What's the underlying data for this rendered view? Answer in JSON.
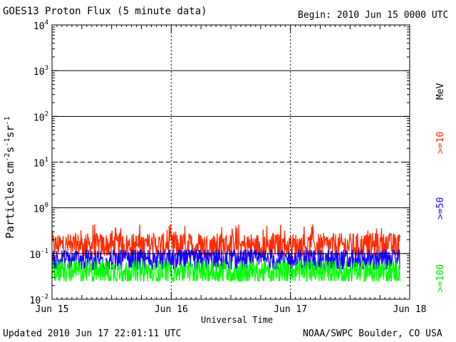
{
  "header": {
    "title": "GOES13 Proton Flux (5 minute data)",
    "begin": "Begin: 2010 Jun 15 0000 UTC"
  },
  "footer": {
    "updated": "Updated 2010 Jun 17 22:01:11 UTC",
    "credit": "NOAA/SWPC Boulder, CO USA"
  },
  "legend": {
    "unit": "MeV",
    "ge10": ">=10",
    "ge50": ">=50",
    "ge100": ">=100"
  },
  "chart_data": {
    "type": "line",
    "title": "GOES13 Proton Flux (5 minute data)",
    "xlabel": "Universal Time",
    "ylabel": "Particles cm-2s-1sr-1",
    "yscale": "log",
    "ylim": [
      0.01,
      10000
    ],
    "ytick_labels": [
      {
        "base": "10",
        "exp": "-2"
      },
      {
        "base": "10",
        "exp": "-1"
      },
      {
        "base": "10",
        "exp": "0"
      },
      {
        "base": "10",
        "exp": "1"
      },
      {
        "base": "10",
        "exp": "2"
      },
      {
        "base": "10",
        "exp": "3"
      },
      {
        "base": "10",
        "exp": "4"
      }
    ],
    "x_ticks": [
      "Jun 15",
      "Jun 16",
      "Jun 17",
      "Jun 18"
    ],
    "xlim": [
      "2010-06-15 00:00",
      "2010-06-18 00:00"
    ],
    "data_end": "2010-06-17 22:00",
    "reference_lines": [
      {
        "value": 0.1,
        "style": "solid"
      },
      {
        "value": 1,
        "style": "solid"
      },
      {
        "value": 10,
        "style": "dashed"
      },
      {
        "value": 100,
        "style": "solid"
      },
      {
        "value": 1000,
        "style": "solid"
      }
    ],
    "series": [
      {
        "name": ">=10 MeV",
        "color": "#ff2a00",
        "typical": 0.15,
        "min": 0.09,
        "max": 0.45
      },
      {
        "name": ">=50 MeV",
        "color": "#1a00ff",
        "typical": 0.07,
        "min": 0.045,
        "max": 0.12
      },
      {
        "name": ">=100 MeV",
        "color": "#00ff00",
        "typical": 0.04,
        "min": 0.025,
        "max": 0.07
      }
    ]
  }
}
